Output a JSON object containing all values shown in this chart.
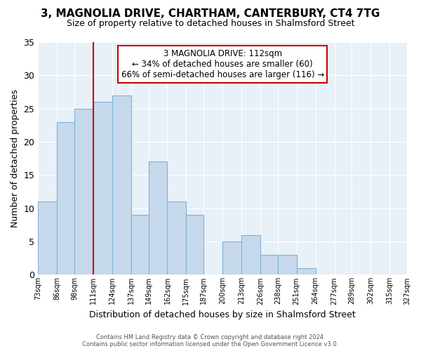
{
  "title": "3, MAGNOLIA DRIVE, CHARTHAM, CANTERBURY, CT4 7TG",
  "subtitle": "Size of property relative to detached houses in Shalmsford Street",
  "xlabel": "Distribution of detached houses by size in Shalmsford Street",
  "ylabel": "Number of detached properties",
  "bar_color": "#c6d9ec",
  "bar_edge_color": "#7fb3d3",
  "background_color": "#ffffff",
  "plot_bg_color": "#e8f0f8",
  "grid_color": "#ffffff",
  "vline_x": 111,
  "vline_color": "#cc0000",
  "bin_edges": [
    73,
    86,
    98,
    111,
    124,
    137,
    149,
    162,
    175,
    187,
    200,
    213,
    226,
    238,
    251,
    264,
    277,
    289,
    302,
    315,
    327
  ],
  "bin_labels": [
    "73sqm",
    "86sqm",
    "98sqm",
    "111sqm",
    "124sqm",
    "137sqm",
    "149sqm",
    "162sqm",
    "175sqm",
    "187sqm",
    "200sqm",
    "213sqm",
    "226sqm",
    "238sqm",
    "251sqm",
    "264sqm",
    "277sqm",
    "289sqm",
    "302sqm",
    "315sqm",
    "327sqm"
  ],
  "counts": [
    11,
    23,
    25,
    26,
    27,
    9,
    17,
    11,
    9,
    0,
    5,
    6,
    3,
    3,
    1,
    0,
    0,
    0,
    0,
    0
  ],
  "ylim": [
    0,
    35
  ],
  "yticks": [
    0,
    5,
    10,
    15,
    20,
    25,
    30,
    35
  ],
  "annotation_title": "3 MAGNOLIA DRIVE: 112sqm",
  "annotation_line1": "← 34% of detached houses are smaller (60)",
  "annotation_line2": "66% of semi-detached houses are larger (116) →",
  "annotation_box_color": "#ffffff",
  "annotation_border_color": "#cc0000",
  "footer_line1": "Contains HM Land Registry data © Crown copyright and database right 2024.",
  "footer_line2": "Contains public sector information licensed under the Open Government Licence v3.0."
}
